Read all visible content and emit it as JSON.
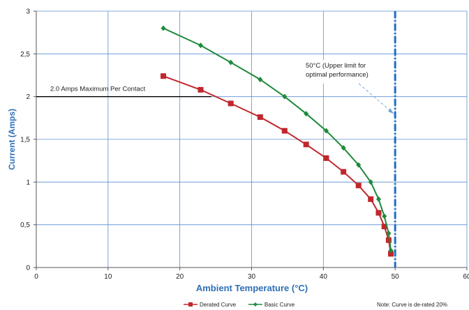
{
  "chart_data": {
    "type": "line",
    "xlabel": "Ambient Temperature (°C)",
    "ylabel": "Current (Amps)",
    "xlim": [
      0,
      60
    ],
    "ylim": [
      0,
      3
    ],
    "x_ticks": [
      "0",
      "10",
      "20",
      "30",
      "40",
      "50",
      "60"
    ],
    "y_ticks": [
      "0",
      "0,5",
      "1",
      "1,5",
      "2",
      "2,5",
      "3"
    ],
    "x_tick_values": [
      0,
      10,
      20,
      30,
      40,
      50,
      60
    ],
    "y_tick_values": [
      0,
      0.5,
      1,
      1.5,
      2,
      2.5,
      3
    ],
    "grid": true,
    "legend_position": "bottom",
    "series": [
      {
        "name": "Derated Curve",
        "color": "#c0272d",
        "marker": "square",
        "points": [
          [
            17.7,
            2.24
          ],
          [
            22.9,
            2.08
          ],
          [
            27.1,
            1.92
          ],
          [
            31.2,
            1.76
          ],
          [
            34.6,
            1.6
          ],
          [
            37.6,
            1.44
          ],
          [
            40.4,
            1.28
          ],
          [
            42.8,
            1.12
          ],
          [
            44.9,
            0.96
          ],
          [
            46.6,
            0.8
          ],
          [
            47.7,
            0.64
          ],
          [
            48.5,
            0.48
          ],
          [
            49.1,
            0.32
          ],
          [
            49.4,
            0.16
          ]
        ]
      },
      {
        "name": "Basic Curve",
        "color": "#1e8a3c",
        "marker": "diamond",
        "points": [
          [
            17.7,
            2.8
          ],
          [
            22.9,
            2.6
          ],
          [
            27.1,
            2.4
          ],
          [
            31.2,
            2.2
          ],
          [
            34.6,
            2.0
          ],
          [
            37.6,
            1.8
          ],
          [
            40.4,
            1.6
          ],
          [
            42.8,
            1.4
          ],
          [
            44.9,
            1.2
          ],
          [
            46.6,
            1.0
          ],
          [
            47.7,
            0.8
          ],
          [
            48.5,
            0.6
          ],
          [
            49.1,
            0.4
          ],
          [
            49.4,
            0.2
          ]
        ]
      }
    ],
    "reference_lines": [
      {
        "axis": "y",
        "value": 2,
        "x_from": 0,
        "x_to": 24.4,
        "color": "#000000",
        "label": "2.0 Amps Maximum Per Contact"
      },
      {
        "axis": "x",
        "value": 50,
        "color": "#1f6fc2",
        "style": "dash-dot",
        "label": "50°C (Upper limit for optimal performance)"
      }
    ],
    "annotations": [
      {
        "lines": [
          "50°C (Upper limit for",
          "optimal performance)"
        ],
        "arrow_to": [
          50,
          1.8
        ]
      }
    ],
    "note": "Note: Curve is de-rated 20%"
  }
}
